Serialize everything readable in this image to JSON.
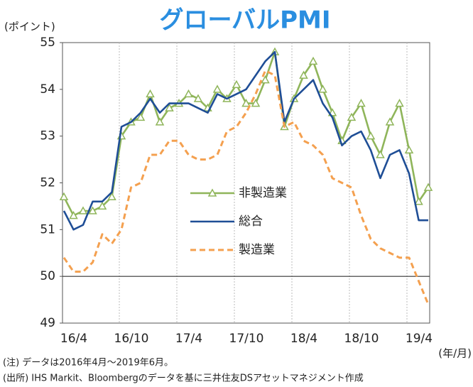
{
  "chart_data": {
    "type": "line",
    "title": "グローバルPMI",
    "y_label": "(ポイント)",
    "x_label": "(年/月)",
    "notes": [
      "(注) データは2016年4月～2019年6月。",
      "(出所) IHS Markit、Bloombergのデータを基に三井住友DSアセットマネジメント作成"
    ],
    "categories": [
      "16/4",
      null,
      null,
      null,
      null,
      null,
      "16/10",
      null,
      null,
      null,
      null,
      null,
      "17/4",
      null,
      null,
      null,
      null,
      null,
      "17/10",
      null,
      null,
      null,
      null,
      null,
      "18/4",
      null,
      null,
      null,
      null,
      null,
      "18/10",
      null,
      null,
      null,
      null,
      null,
      "19/4",
      null,
      null
    ],
    "series": [
      {
        "name": "非製造業",
        "color": "#8fb55a",
        "marker": "triangle",
        "values": [
          51.7,
          51.3,
          51.4,
          51.4,
          51.5,
          51.7,
          53.0,
          53.3,
          53.4,
          53.9,
          53.3,
          53.6,
          53.7,
          53.9,
          53.8,
          53.6,
          54.0,
          53.8,
          54.1,
          53.7,
          53.7,
          54.2,
          54.8,
          53.2,
          53.8,
          54.3,
          54.6,
          54.0,
          53.5,
          52.9,
          53.4,
          53.7,
          53.0,
          52.6,
          53.3,
          53.7,
          52.7,
          51.6,
          51.9
        ]
      },
      {
        "name": "総合",
        "color": "#1f4e96",
        "values": [
          51.4,
          51.0,
          51.1,
          51.6,
          51.6,
          51.8,
          53.2,
          53.3,
          53.5,
          53.8,
          53.5,
          53.7,
          53.7,
          53.7,
          53.6,
          53.5,
          53.9,
          53.8,
          53.9,
          54.0,
          54.3,
          54.6,
          54.8,
          53.3,
          53.8,
          54.0,
          54.2,
          53.7,
          53.4,
          52.8,
          53.0,
          53.1,
          52.7,
          52.1,
          52.6,
          52.7,
          52.2,
          51.2,
          51.2
        ]
      },
      {
        "name": "製造業",
        "color": "#f4a04f",
        "dashed": true,
        "values": [
          50.4,
          50.1,
          50.1,
          50.3,
          50.9,
          50.7,
          51.0,
          51.9,
          52.0,
          52.6,
          52.6,
          52.9,
          52.9,
          52.6,
          52.5,
          52.5,
          52.6,
          53.1,
          53.2,
          53.5,
          53.9,
          54.4,
          54.3,
          53.2,
          53.3,
          52.9,
          52.8,
          52.6,
          52.1,
          52.0,
          51.9,
          51.3,
          50.8,
          50.6,
          50.5,
          50.4,
          50.4,
          49.9,
          49.4
        ]
      }
    ],
    "ylim": [
      49,
      55
    ],
    "yticks": [
      49,
      50,
      51,
      52,
      53,
      54,
      55
    ],
    "reference_line": 50,
    "grid": "x"
  }
}
